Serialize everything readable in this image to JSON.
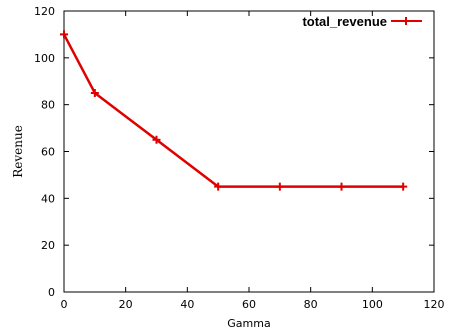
{
  "colors": {
    "series": "#e00000",
    "axis": "#000000",
    "background": "#ffffff"
  },
  "chart_data": {
    "type": "line",
    "title": "",
    "xlabel": "Gamma",
    "ylabel": "Revenue",
    "xlim": [
      0,
      120
    ],
    "ylim": [
      0,
      120
    ],
    "xticks": [
      0,
      20,
      40,
      60,
      80,
      100,
      120
    ],
    "yticks": [
      0,
      20,
      40,
      60,
      80,
      100,
      120
    ],
    "grid": false,
    "legend_position": "top-right",
    "series": [
      {
        "name": "total_revenue",
        "x": [
          0,
          10,
          30,
          50,
          70,
          90,
          110
        ],
        "y": [
          110,
          85,
          65,
          45,
          45,
          45,
          45
        ]
      }
    ]
  }
}
